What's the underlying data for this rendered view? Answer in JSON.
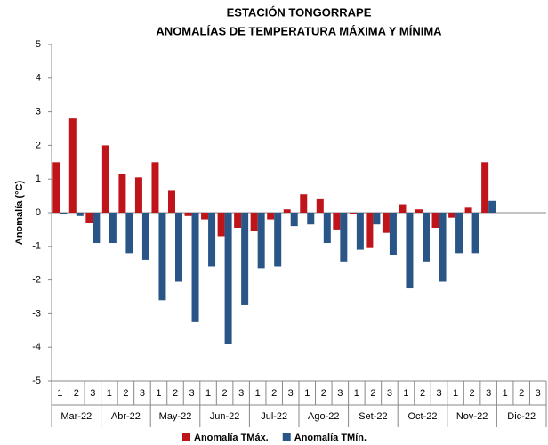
{
  "chart_data": {
    "type": "bar",
    "title": "ESTACIÓN TONGORRAPE",
    "subtitle": "ANOMALÍAS DE TEMPERATURA MÁXIMA Y MÍNIMA",
    "y_label": "Anomalía (°C)",
    "categories": [
      "1",
      "2",
      "3",
      "1",
      "2",
      "3",
      "1",
      "2",
      "3",
      "1",
      "2",
      "3",
      "1",
      "2",
      "3",
      "1",
      "2",
      "3",
      "1",
      "2",
      "3",
      "1",
      "2",
      "3",
      "1",
      "2",
      "3",
      "1",
      "2",
      "3"
    ],
    "category_groups": [
      "Mar-22",
      "Abr-22",
      "May-22",
      "Jun-22",
      "Jul-22",
      "Ago-22",
      "Set-22",
      "Oct-22",
      "Nov-22",
      "Dic-22"
    ],
    "series": [
      {
        "name": "Anomalía TMáx.",
        "color": "#c0141b",
        "values": [
          1.5,
          2.8,
          -0.3,
          2.0,
          1.15,
          1.05,
          1.5,
          0.65,
          -0.1,
          -0.2,
          -0.7,
          -0.45,
          -0.55,
          -0.2,
          0.1,
          0.55,
          0.4,
          -0.5,
          -0.05,
          -1.05,
          -0.6,
          0.25,
          0.1,
          -0.45,
          -0.15,
          0.15,
          1.5,
          null,
          null,
          null
        ]
      },
      {
        "name": "Anomalía TMín.",
        "color": "#2a5587",
        "values": [
          -0.05,
          -0.1,
          -0.9,
          -0.9,
          -1.2,
          -1.4,
          -2.6,
          -2.05,
          -3.25,
          -1.6,
          -3.9,
          -2.75,
          -1.65,
          -1.6,
          -0.4,
          -0.35,
          -0.9,
          -1.45,
          -1.1,
          -0.35,
          -1.25,
          -2.25,
          -1.45,
          -2.05,
          -1.2,
          -1.2,
          0.35,
          null,
          null,
          null
        ]
      }
    ],
    "ylim": [
      -5,
      5
    ],
    "yticks": [
      -5,
      -4,
      -3,
      -2,
      -1,
      0,
      1,
      2,
      3,
      4,
      5
    ],
    "grid": false,
    "legend": "bottom"
  }
}
